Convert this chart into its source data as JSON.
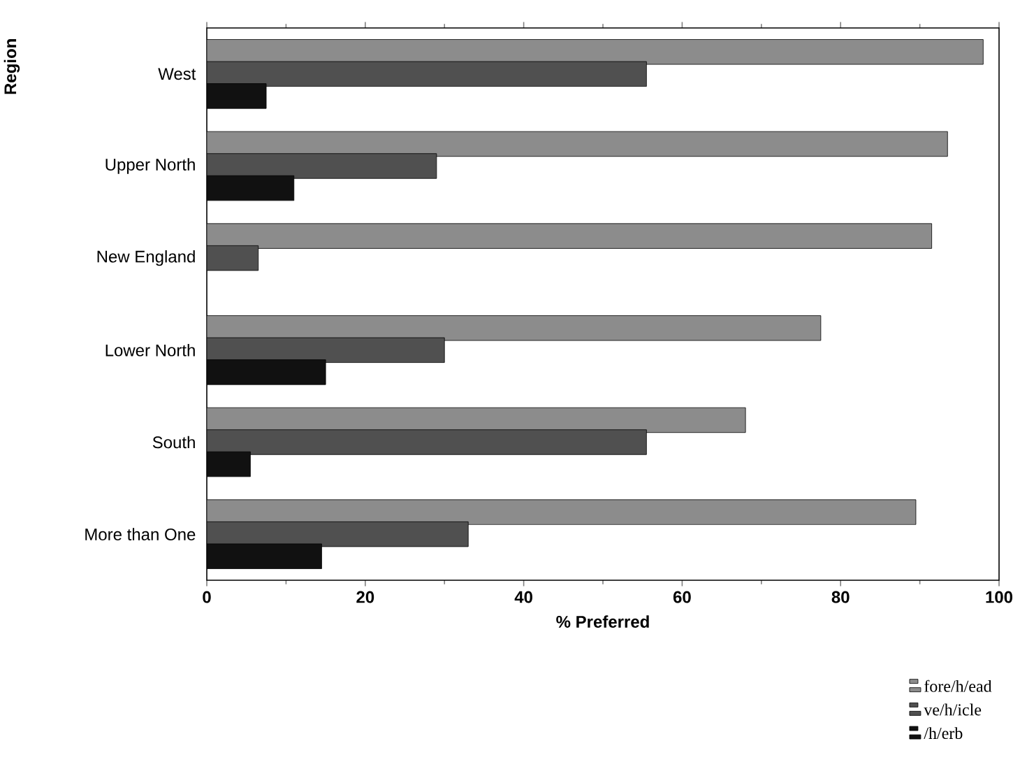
{
  "chart_data": {
    "type": "bar",
    "orientation": "horizontal",
    "xlabel": "%   Preferred",
    "ylabel": "Region",
    "categories": [
      "West",
      "Upper North",
      "New England",
      "Lower North",
      "South",
      "More than One"
    ],
    "series": [
      {
        "name": "fore/h/ead",
        "color": "#8c8c8c",
        "values": [
          98,
          93.5,
          91.5,
          77.5,
          68,
          89.5
        ]
      },
      {
        "name": "ve/h/icle",
        "color": "#505050",
        "values": [
          55.5,
          29,
          6.5,
          30,
          55.5,
          33
        ]
      },
      {
        "name": "/h/erb",
        "color": "#111111",
        "values": [
          7.5,
          11,
          null,
          15,
          5.5,
          14.5
        ]
      }
    ],
    "xlim": [
      0,
      100
    ],
    "xticks": [
      0,
      20,
      40,
      60,
      80,
      100
    ],
    "grid": false,
    "legend": "bottom right"
  }
}
